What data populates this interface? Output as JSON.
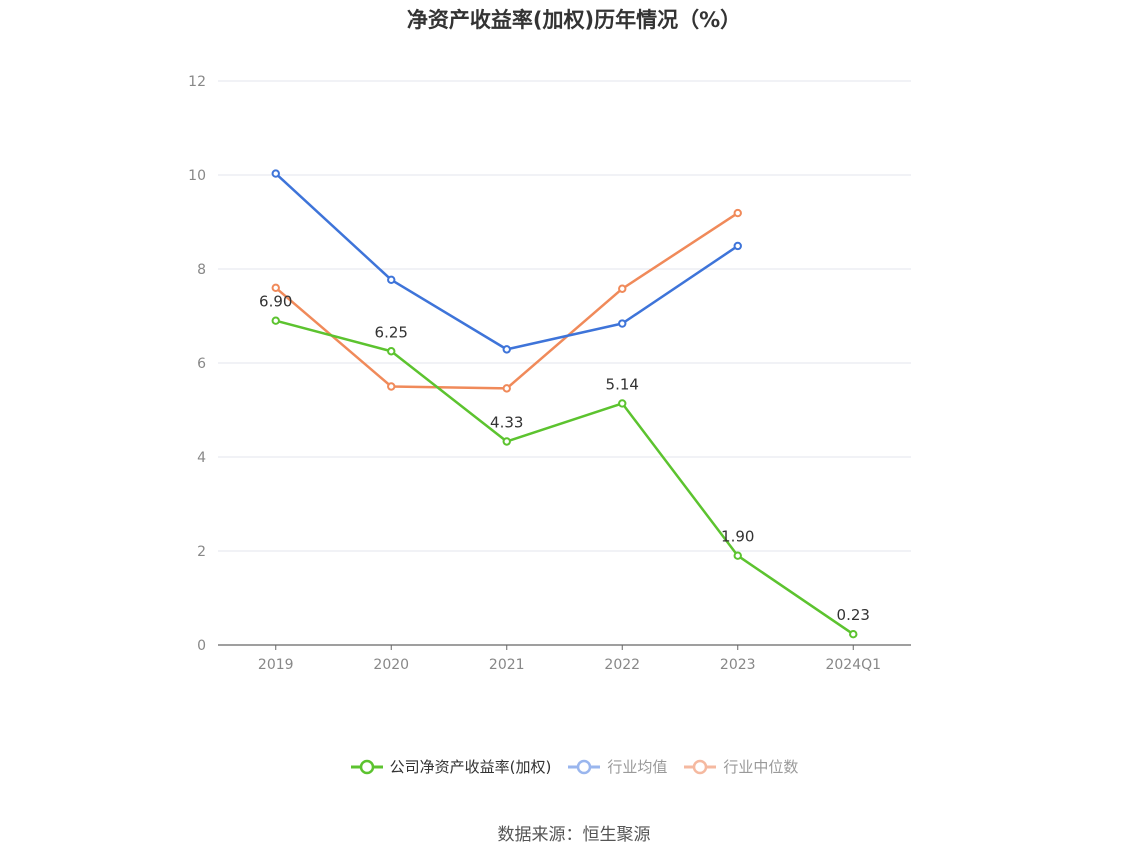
{
  "title": "净资产收益率(加权)历年情况（%）",
  "source": "数据来源：恒生聚源",
  "chart_data": {
    "type": "line",
    "categories": [
      "2019",
      "2020",
      "2021",
      "2022",
      "2023",
      "2024Q1"
    ],
    "ylim": [
      0,
      12
    ],
    "yticks": [
      "0",
      "2",
      "4",
      "6",
      "8",
      "10",
      "12"
    ],
    "grid": true,
    "legend_position": "bottom-center",
    "series": [
      {
        "name": "公司净资产收益率(加权)",
        "color": "#5cc32f",
        "values": [
          6.9,
          6.25,
          4.33,
          5.14,
          1.9,
          0.23
        ],
        "labels": [
          "6.90",
          "6.25",
          "4.33",
          "5.14",
          "1.90",
          "0.23"
        ]
      },
      {
        "name": "行业均值",
        "color": "#3e74d9",
        "values": [
          10.03,
          7.77,
          6.29,
          6.84,
          8.49,
          null
        ]
      },
      {
        "name": "行业中位数",
        "color": "#f08a5a",
        "values": [
          7.6,
          5.5,
          5.46,
          7.58,
          9.19,
          null
        ]
      }
    ]
  },
  "legend": {
    "items": [
      {
        "label": "公司净资产收益率(加权)",
        "color": "#5cc32f",
        "active": true
      },
      {
        "label": "行业均值",
        "color": "#9ab6ee",
        "active": false
      },
      {
        "label": "行业中位数",
        "color": "#f5b9a0",
        "active": false
      }
    ]
  }
}
